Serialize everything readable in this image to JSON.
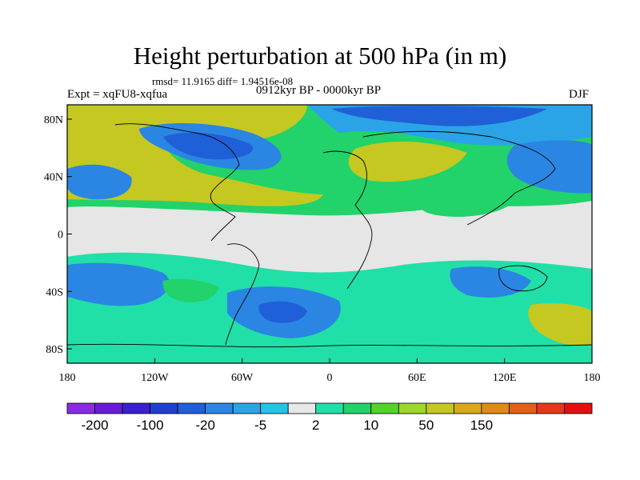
{
  "title": "Height perturbation at 500 hPa (in m)",
  "stats": "rmsd= 11.9165  diff= 1.94516e-08",
  "experiment": "Expt = xqFU8-xqfua",
  "period": "0912kyr BP - 0000kyr BP",
  "season": "DJF",
  "axes": {
    "lat_ticks": [
      "80N",
      "40N",
      "0",
      "40S",
      "80S"
    ],
    "lon_ticks": [
      "180",
      "120W",
      "60W",
      "0",
      "60E",
      "120E",
      "180"
    ]
  },
  "colorbar": {
    "colors": [
      "#8a2be2",
      "#6a1bd8",
      "#3a1fd0",
      "#1f3fd0",
      "#1f60d8",
      "#2a86e2",
      "#2aa4e6",
      "#22c4e8",
      "#e8e8e8",
      "#20e0a8",
      "#22d26a",
      "#52d42a",
      "#9bd82a",
      "#c4c820",
      "#d8a818",
      "#e08a18",
      "#e46018",
      "#e43818",
      "#e41010"
    ],
    "labels": [
      "-200",
      "-100",
      "-20",
      "-5",
      "2",
      "10",
      "50",
      "150"
    ],
    "label_positions": [
      1,
      3,
      5,
      7,
      9,
      11,
      13,
      15
    ]
  },
  "colors": {
    "neutral": "#e6e6e6",
    "strong_neg": "#2040c8",
    "mid_neg": "#2a86e2",
    "weak_neg": "#22c4e8",
    "weak_pos": "#20e0a8",
    "mid_pos": "#52d42a",
    "strong_pos": "#c4c820"
  }
}
